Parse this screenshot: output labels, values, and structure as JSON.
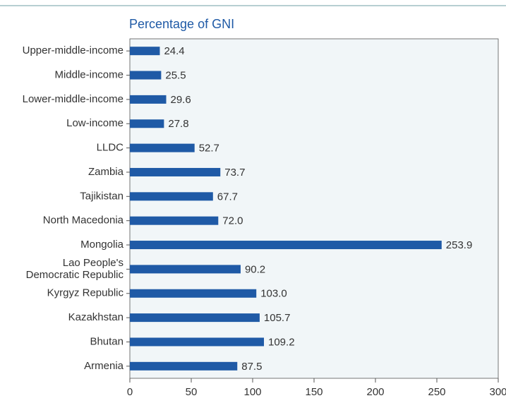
{
  "chart_data": {
    "type": "barh",
    "title": "Percentage of GNI",
    "categories": [
      "Upper-middle-income",
      "Middle-income",
      "Lower-middle-income",
      "Low-income",
      "LLDC",
      "Zambia",
      "Tajikistan",
      "North Macedonia",
      "Mongolia",
      "Lao People's\nDemocratic Republic",
      "Kyrgyz Republic",
      "Kazakhstan",
      "Bhutan",
      "Armenia"
    ],
    "values": [
      24.4,
      25.5,
      29.6,
      27.8,
      52.7,
      73.7,
      67.7,
      72.0,
      253.9,
      90.2,
      103.0,
      105.7,
      109.2,
      87.5
    ],
    "value_labels": [
      "24.4",
      "25.5",
      "29.6",
      "27.8",
      "52.7",
      "73.7",
      "67.7",
      "72.0",
      "253.9",
      "90.2",
      "103.0",
      "105.7",
      "109.2",
      "87.5"
    ],
    "color": "#1f5aa6",
    "xlim": [
      0,
      300
    ],
    "xticks": [
      0,
      50,
      100,
      150,
      200,
      250,
      300
    ]
  }
}
